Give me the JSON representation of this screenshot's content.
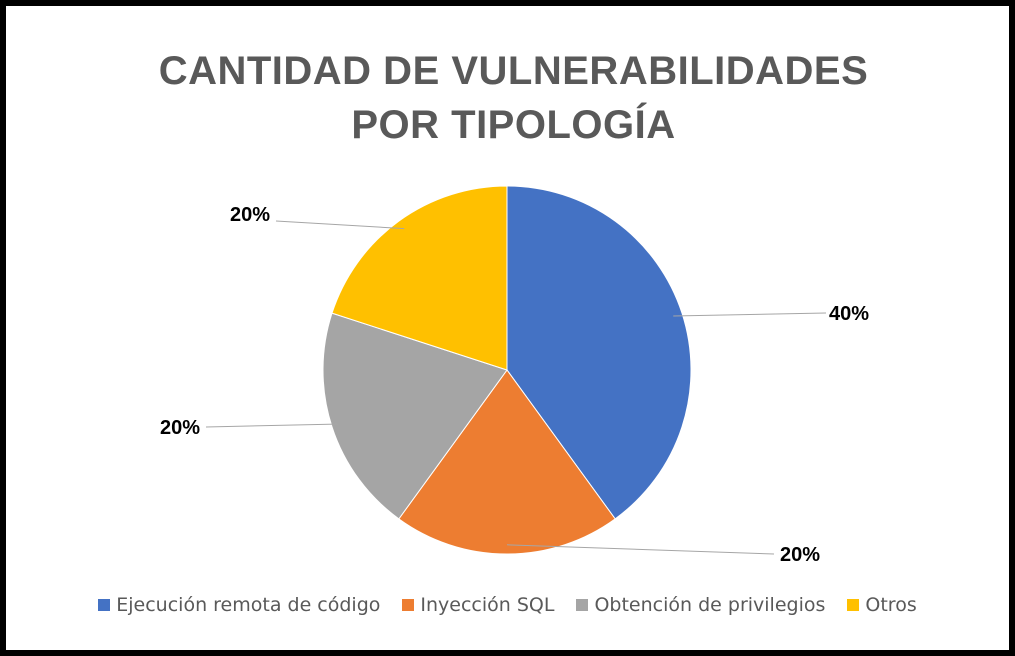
{
  "chart_data": {
    "type": "pie",
    "title_lines": [
      "CANTIDAD DE VULNERABILIDADES",
      "POR TIPOLOGÍA"
    ],
    "categories": [
      "Ejecución remota de código",
      "Inyección SQL",
      "Obtención de privilegios",
      "Otros"
    ],
    "values": [
      40,
      20,
      20,
      20
    ],
    "data_labels": [
      "40%",
      "20%",
      "20%",
      "20%"
    ],
    "colors": [
      "#4472C4",
      "#ED7D31",
      "#A5A5A5",
      "#FFC000"
    ],
    "legend_position": "bottom"
  }
}
